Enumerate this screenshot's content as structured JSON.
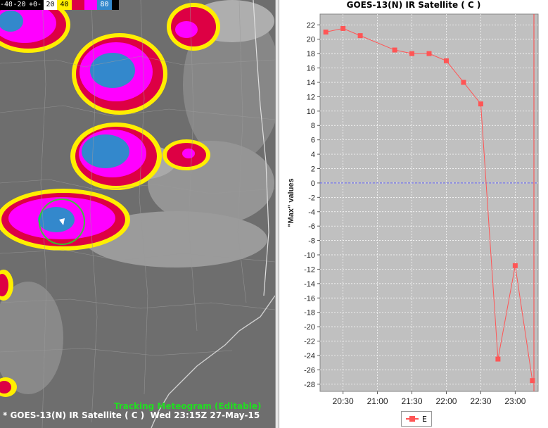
{
  "colorbar": {
    "items": [
      {
        "label": "-40",
        "bg": "#000000",
        "fg": "#ffffff"
      },
      {
        "label": "-20",
        "bg": "#000000",
        "fg": "#ffffff"
      },
      {
        "label": "+0-",
        "bg": "#000000",
        "fg": "#ffffff"
      },
      {
        "label": "20",
        "bg": "#ffffff",
        "fg": "#000000"
      },
      {
        "label": "40",
        "bg": "#ffee00",
        "fg": "#000000"
      },
      {
        "label": "",
        "bg": "#dd0044",
        "fg": "#ffffff"
      },
      {
        "label": "",
        "bg": "#ff00ff",
        "fg": "#ffffff"
      },
      {
        "label": "80",
        "bg": "#3388cc",
        "fg": "#ffffff"
      },
      {
        "label": "",
        "bg": "#000000",
        "fg": "#ffffff"
      }
    ]
  },
  "map": {
    "tracking_label": "Tracking Meteogram (Editable)",
    "caption": "* GOES-13(N) IR Satellite ( C )  Wed 23:15Z 27-May-15"
  },
  "chart": {
    "title": "GOES-13(N) IR Satellite ( C )",
    "legend": "E",
    "colors": {
      "series": "#ff5555",
      "plot_bg": "#c0c0c0",
      "zero_line": "#5555ff",
      "marker_line": "#ff4444"
    }
  },
  "chart_data": {
    "type": "line",
    "title": "GOES-13(N) IR Satellite ( C )",
    "xlabel": "",
    "ylabel": "\"Max\" values",
    "ylim": [
      -29,
      23.5
    ],
    "yticks": [
      22,
      20,
      18,
      16,
      14,
      12,
      10,
      8,
      6,
      4,
      2,
      0,
      -2,
      -4,
      -6,
      -8,
      -10,
      -12,
      -14,
      -16,
      -18,
      -20,
      -22,
      -24,
      -26,
      -28
    ],
    "xticks": [
      "20:30",
      "21:00",
      "21:30",
      "22:00",
      "22:30",
      "23:00"
    ],
    "xlim": [
      "20:10",
      "23:20"
    ],
    "grid": true,
    "legend_position": "bottom",
    "series": [
      {
        "name": "E",
        "x": [
          "20:15",
          "20:30",
          "20:45",
          "21:15",
          "21:30",
          "21:45",
          "22:00",
          "22:15",
          "22:30",
          "22:45",
          "23:00",
          "23:15"
        ],
        "y": [
          21,
          21.5,
          20.5,
          18.5,
          18,
          18,
          17,
          14,
          11,
          -24.5,
          -11.5,
          -27.5
        ]
      }
    ]
  }
}
